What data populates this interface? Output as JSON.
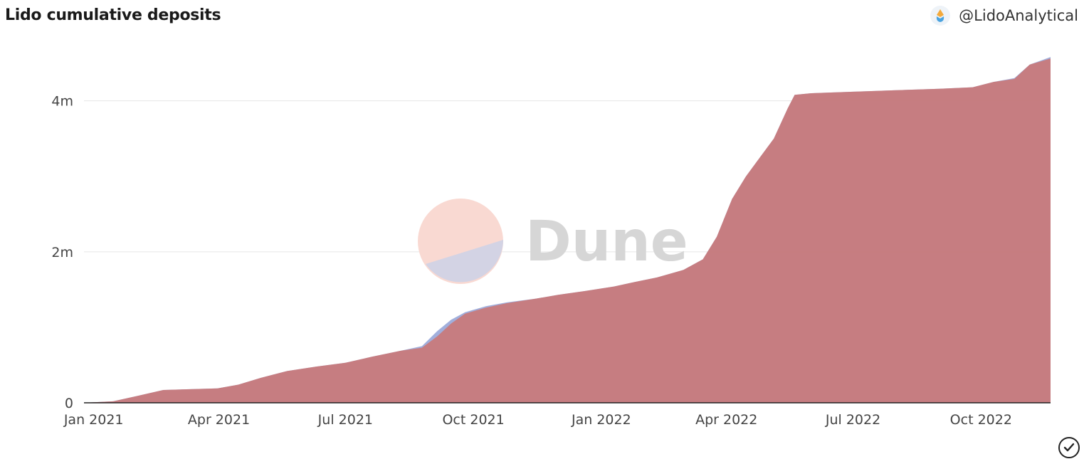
{
  "header": {
    "title": "Lido cumulative deposits",
    "author": "@LidoAnalytical"
  },
  "watermark": "Dune",
  "chart_data": {
    "type": "area",
    "title": "Lido cumulative deposits",
    "xlabel": "",
    "ylabel": "",
    "ylim": [
      0,
      4600000
    ],
    "grid": true,
    "x_ticks": [
      "Jan 2021",
      "Apr 2021",
      "Jul 2021",
      "Oct 2021",
      "Jan 2022",
      "Apr 2022",
      "Jul 2022",
      "Oct 2022"
    ],
    "y_ticks": [
      {
        "value": 0,
        "label": "0"
      },
      {
        "value": 2000000,
        "label": "2m"
      },
      {
        "value": 4000000,
        "label": "4m"
      }
    ],
    "series": [
      {
        "color": "#97a6d8",
        "x": [
          "2020-12-25",
          "2021-01-15",
          "2021-02-01",
          "2021-02-20",
          "2021-03-31",
          "2021-04-15",
          "2021-05-01",
          "2021-05-20",
          "2021-06-10",
          "2021-07-01",
          "2021-07-20",
          "2021-08-10",
          "2021-08-25",
          "2021-09-05",
          "2021-09-15",
          "2021-09-25",
          "2021-10-10",
          "2021-10-25",
          "2021-11-15",
          "2021-12-01",
          "2021-12-20",
          "2022-01-10",
          "2022-01-25",
          "2022-02-10",
          "2022-03-01",
          "2022-03-15",
          "2022-03-25",
          "2022-04-05",
          "2022-04-15",
          "2022-04-25",
          "2022-05-05",
          "2022-05-15",
          "2022-05-20",
          "2022-06-01",
          "2022-07-01",
          "2022-08-01",
          "2022-09-01",
          "2022-09-25",
          "2022-10-10",
          "2022-10-25",
          "2022-11-05",
          "2022-11-20"
        ],
        "values": [
          0,
          20000,
          90000,
          170000,
          190000,
          240000,
          330000,
          420000,
          480000,
          530000,
          610000,
          690000,
          750000,
          950000,
          1100000,
          1200000,
          1280000,
          1330000,
          1380000,
          1430000,
          1480000,
          1540000,
          1600000,
          1660000,
          1760000,
          1900000,
          2200000,
          2700000,
          3000000,
          3250000,
          3500000,
          3900000,
          4080000,
          4100000,
          4120000,
          4140000,
          4160000,
          4180000,
          4250000,
          4300000,
          4480000,
          4580000
        ]
      },
      {
        "color": "#c97878",
        "x": [
          "2020-12-25",
          "2021-01-15",
          "2021-02-01",
          "2021-02-20",
          "2021-03-31",
          "2021-04-15",
          "2021-05-01",
          "2021-05-20",
          "2021-06-10",
          "2021-07-01",
          "2021-07-20",
          "2021-08-10",
          "2021-08-25",
          "2021-09-05",
          "2021-09-15",
          "2021-09-25",
          "2021-10-10",
          "2021-10-25",
          "2021-11-15",
          "2021-12-01",
          "2021-12-20",
          "2022-01-10",
          "2022-01-25",
          "2022-02-10",
          "2022-03-01",
          "2022-03-15",
          "2022-03-25",
          "2022-04-05",
          "2022-04-15",
          "2022-04-25",
          "2022-05-05",
          "2022-05-15",
          "2022-05-20",
          "2022-06-01",
          "2022-07-01",
          "2022-08-01",
          "2022-09-01",
          "2022-09-25",
          "2022-10-10",
          "2022-10-25",
          "2022-11-05",
          "2022-11-20"
        ],
        "values": [
          0,
          20000,
          90000,
          170000,
          190000,
          240000,
          330000,
          420000,
          480000,
          530000,
          610000,
          690000,
          730000,
          880000,
          1050000,
          1180000,
          1260000,
          1320000,
          1380000,
          1430000,
          1480000,
          1540000,
          1600000,
          1660000,
          1760000,
          1900000,
          2200000,
          2700000,
          3000000,
          3250000,
          3500000,
          3900000,
          4080000,
          4100000,
          4120000,
          4140000,
          4160000,
          4180000,
          4250000,
          4290000,
          4480000,
          4560000
        ]
      }
    ]
  }
}
